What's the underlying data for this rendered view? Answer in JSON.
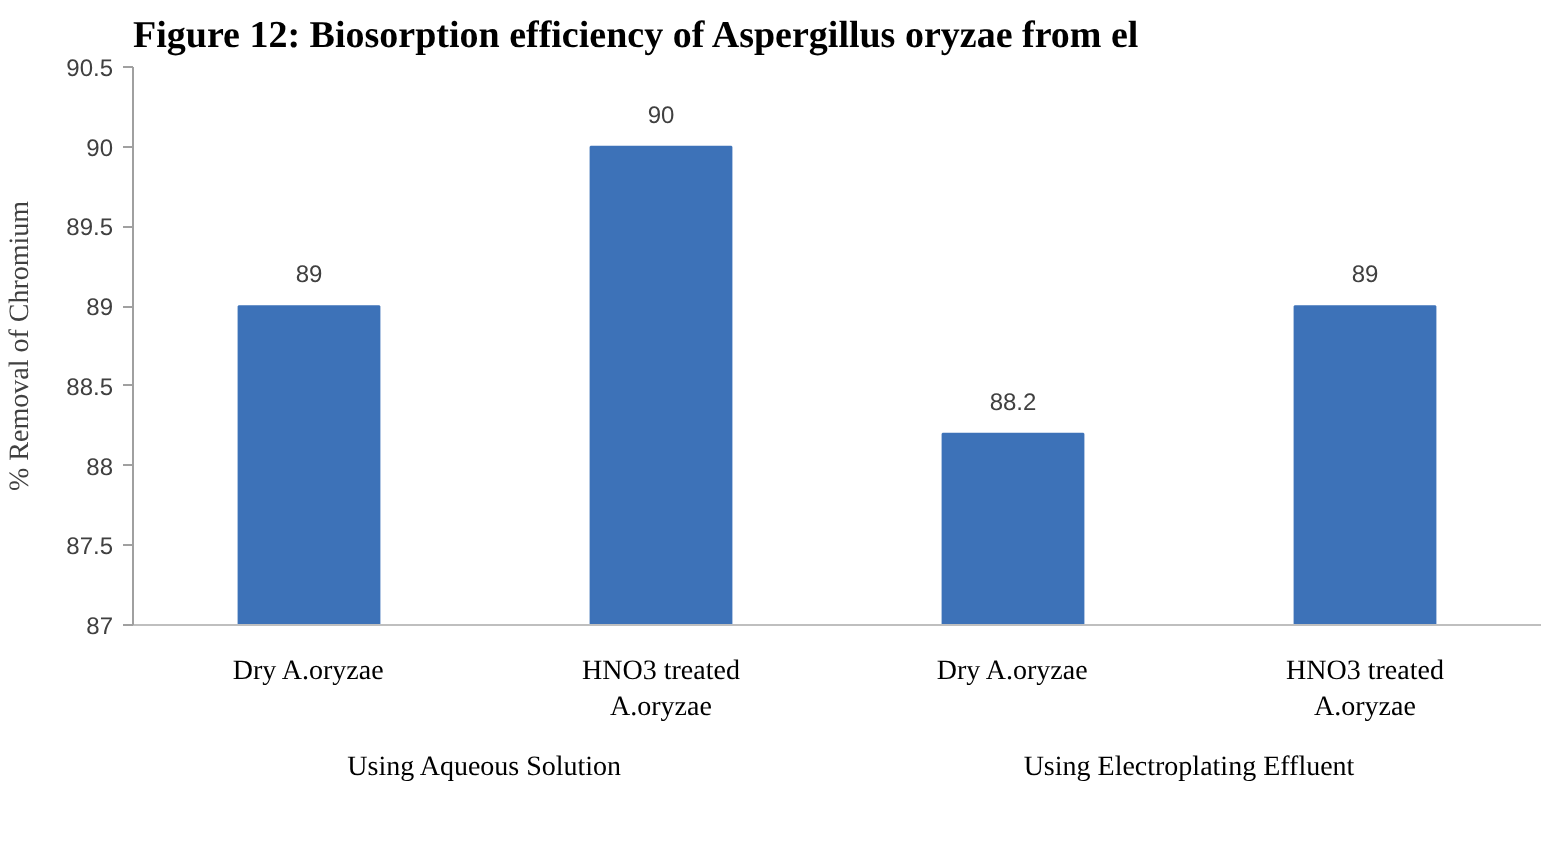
{
  "chart_data": {
    "type": "bar",
    "title": "Figure 12: Biosorption efficiency of Aspergillus oryzae from el",
    "ylabel": "% Removal of Chromium",
    "categories": [
      "Dry A.oryzae",
      "HNO3 treated A.oryzae",
      "Dry A.oryzae",
      "HNO3 treated A.oryzae"
    ],
    "values": [
      89,
      90,
      88.2,
      89
    ],
    "color": "#3d72b8",
    "ylim": [
      87,
      90.5
    ],
    "yticks": [
      87,
      87.5,
      88,
      88.5,
      89,
      89.5,
      90,
      90.5
    ],
    "data_labels": true,
    "annotations": [
      "Using Aqueous Solution",
      "Using Electroplating Effluent"
    ]
  }
}
